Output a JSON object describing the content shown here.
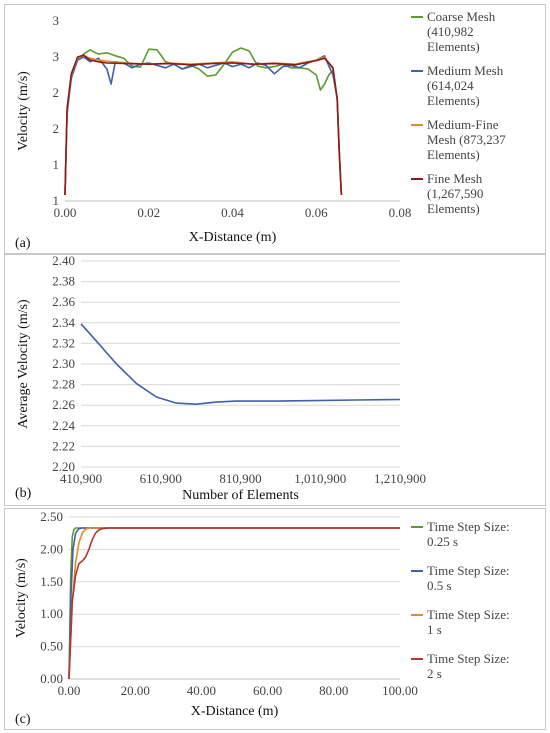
{
  "chart_data": [
    {
      "panel_label": "(a)",
      "type": "line",
      "xlabel": "X-Distance (m)",
      "ylabel": "Velocity (m/s)",
      "xticks": [
        "0.00",
        "0.02",
        "0.04",
        "0.06",
        "0.08"
      ],
      "yticks": [
        "1",
        "1",
        "2",
        "2",
        "3",
        "3"
      ],
      "ylim": [
        0.5,
        3.5
      ],
      "xlim": [
        0,
        0.08
      ],
      "legend_position": "right",
      "series": [
        {
          "name": "Coarse Mesh (410,982 Elements)",
          "color": "#5b9b2c",
          "x": [
            0,
            0.0005,
            0.0015,
            0.003,
            0.0045,
            0.006,
            0.007,
            0.008,
            0.01,
            0.012,
            0.014,
            0.016,
            0.018,
            0.02,
            0.022,
            0.024,
            0.026,
            0.028,
            0.03,
            0.032,
            0.034,
            0.036,
            0.038,
            0.04,
            0.042,
            0.044,
            0.046,
            0.048,
            0.05,
            0.052,
            0.054,
            0.056,
            0.058,
            0.06,
            0.061,
            0.062,
            0.063,
            0.064,
            0.065,
            0.0655,
            0.066
          ],
          "y": [
            0.6,
            2.0,
            2.55,
            2.85,
            2.95,
            3.02,
            2.98,
            2.95,
            2.97,
            2.92,
            2.88,
            2.75,
            2.73,
            3.03,
            3.02,
            2.82,
            2.78,
            2.7,
            2.76,
            2.7,
            2.58,
            2.6,
            2.78,
            2.98,
            3.05,
            3.0,
            2.75,
            2.72,
            2.74,
            2.78,
            2.72,
            2.72,
            2.7,
            2.6,
            2.35,
            2.45,
            2.6,
            2.68,
            2.2,
            1.3,
            0.6
          ]
        },
        {
          "name": "Medium Mesh (614,024 Elements)",
          "color": "#3e61ad",
          "x": [
            0,
            0.0005,
            0.0015,
            0.003,
            0.0045,
            0.006,
            0.008,
            0.01,
            0.011,
            0.012,
            0.014,
            0.016,
            0.018,
            0.02,
            0.022,
            0.024,
            0.026,
            0.028,
            0.03,
            0.032,
            0.034,
            0.036,
            0.038,
            0.04,
            0.042,
            0.044,
            0.046,
            0.048,
            0.05,
            0.052,
            0.054,
            0.056,
            0.058,
            0.06,
            0.062,
            0.063,
            0.064,
            0.065,
            0.0655,
            0.066
          ],
          "y": [
            0.6,
            1.95,
            2.55,
            2.85,
            2.9,
            2.82,
            2.88,
            2.7,
            2.45,
            2.82,
            2.8,
            2.72,
            2.78,
            2.8,
            2.76,
            2.72,
            2.78,
            2.7,
            2.74,
            2.78,
            2.72,
            2.76,
            2.8,
            2.74,
            2.78,
            2.72,
            2.8,
            2.76,
            2.62,
            2.74,
            2.76,
            2.72,
            2.8,
            2.85,
            2.92,
            2.75,
            2.6,
            2.2,
            1.3,
            0.6
          ]
        },
        {
          "name": "Medium-Fine Mesh (873,237 Elements)",
          "color": "#e38a2a",
          "x": [
            0,
            0.0005,
            0.0015,
            0.003,
            0.0045,
            0.006,
            0.008,
            0.01,
            0.015,
            0.02,
            0.025,
            0.03,
            0.035,
            0.04,
            0.045,
            0.05,
            0.055,
            0.06,
            0.062,
            0.064,
            0.065,
            0.0655,
            0.066
          ],
          "y": [
            0.6,
            2.0,
            2.6,
            2.88,
            2.92,
            2.88,
            2.85,
            2.83,
            2.8,
            2.78,
            2.8,
            2.78,
            2.8,
            2.82,
            2.78,
            2.8,
            2.78,
            2.85,
            2.9,
            2.7,
            2.2,
            1.3,
            0.6
          ]
        },
        {
          "name": "Fine Mesh (1,267,590 Elements)",
          "color": "#8b1a1a",
          "x": [
            0,
            0.0005,
            0.0015,
            0.003,
            0.0045,
            0.006,
            0.008,
            0.01,
            0.015,
            0.02,
            0.025,
            0.03,
            0.035,
            0.04,
            0.045,
            0.05,
            0.055,
            0.06,
            0.062,
            0.064,
            0.065,
            0.0655,
            0.066
          ],
          "y": [
            0.6,
            2.05,
            2.62,
            2.9,
            2.93,
            2.85,
            2.82,
            2.8,
            2.79,
            2.78,
            2.79,
            2.77,
            2.79,
            2.8,
            2.78,
            2.79,
            2.77,
            2.84,
            2.88,
            2.72,
            2.2,
            1.3,
            0.6
          ]
        }
      ]
    },
    {
      "panel_label": "(b)",
      "type": "line",
      "xlabel": "Number of Elements",
      "ylabel": "Average Velocity (m/s)",
      "xticks": [
        "410,900",
        "610,900",
        "810,900",
        "1,010,900",
        "1,210,900"
      ],
      "yticks": [
        "2.20",
        "2.22",
        "2.24",
        "2.26",
        "2.28",
        "2.30",
        "2.32",
        "2.34",
        "2.36",
        "2.38",
        "2.40"
      ],
      "xlim": [
        410900,
        1210900
      ],
      "ylim": [
        2.2,
        2.4
      ],
      "series": [
        {
          "name": "",
          "color": "#3e61ad",
          "x": [
            410982,
            450000,
            500000,
            550000,
            600000,
            650000,
            700000,
            750000,
            800000,
            850000,
            900000,
            1000000,
            1100000,
            1210900
          ],
          "y": [
            2.339,
            2.322,
            2.3,
            2.281,
            2.268,
            2.262,
            2.261,
            2.263,
            2.264,
            2.264,
            2.264,
            2.2645,
            2.265,
            2.2655
          ]
        }
      ]
    },
    {
      "panel_label": "(c)",
      "type": "line",
      "xlabel": "X-Distance (m)",
      "ylabel": "Velocity (m/s)",
      "xticks": [
        "0.00",
        "20.00",
        "40.00",
        "60.00",
        "80.00",
        "100.00"
      ],
      "yticks": [
        "0.00",
        "0.50",
        "1.00",
        "1.50",
        "2.00",
        "2.50"
      ],
      "xlim": [
        0,
        100
      ],
      "ylim": [
        0,
        2.5
      ],
      "legend_position": "right",
      "series": [
        {
          "name": "Time Step Size: 0.25 s",
          "color": "#5b9b2c",
          "x": [
            0,
            0.5,
            1,
            1.5,
            2,
            3,
            100
          ],
          "y": [
            0,
            1.6,
            2.2,
            2.31,
            2.33,
            2.33,
            2.33
          ]
        },
        {
          "name": "Time Step Size: 0.5 s",
          "color": "#3e61ad",
          "x": [
            0,
            0.6,
            1.2,
            2,
            3,
            4,
            100
          ],
          "y": [
            0,
            1.3,
            2.0,
            2.25,
            2.32,
            2.33,
            2.33
          ]
        },
        {
          "name": "Time Step Size: 1 s",
          "color": "#e38a2a",
          "x": [
            0,
            1,
            2,
            3,
            4,
            5,
            6,
            100
          ],
          "y": [
            0,
            1.2,
            1.8,
            2.1,
            2.25,
            2.31,
            2.33,
            2.33
          ]
        },
        {
          "name": "Time Step Size: 2 s",
          "color": "#b5352a",
          "x": [
            0,
            1,
            2,
            3,
            4,
            5,
            6,
            7,
            8,
            9,
            10,
            12,
            100
          ],
          "y": [
            0,
            1.2,
            1.6,
            1.78,
            1.82,
            1.88,
            2.0,
            2.15,
            2.25,
            2.3,
            2.32,
            2.33,
            2.33
          ]
        }
      ]
    }
  ]
}
